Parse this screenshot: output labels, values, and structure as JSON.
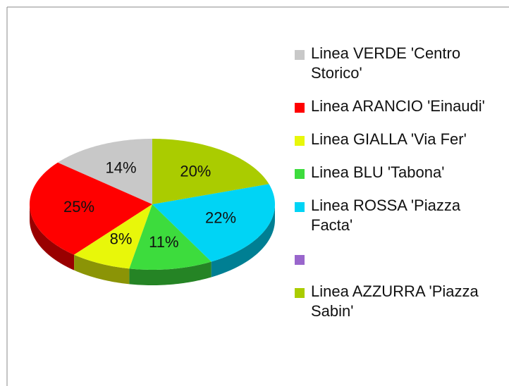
{
  "chart_data": {
    "type": "pie",
    "categories": [
      "Linea VERDE 'Centro Storico'",
      "Linea ARANCIO 'Einaudi'",
      "Linea GIALLA 'Via Fer'",
      "Linea BLU 'Tabona'",
      "Linea ROSSA 'Piazza Facta'",
      null,
      "Linea AZZURRA 'Piazza Sabin'"
    ],
    "values": [
      14,
      25,
      8,
      11,
      22,
      0,
      20
    ],
    "value_labels": [
      "14%",
      "25%",
      "8%",
      "11%",
      "22%",
      null,
      "20%"
    ],
    "colors": [
      "#c8c8c8",
      "#ff0000",
      "#e8f70a",
      "#3ddc3d",
      "#00d4f5",
      "#9966cc",
      "#aacc00"
    ],
    "legend": "right",
    "three_d": true
  }
}
